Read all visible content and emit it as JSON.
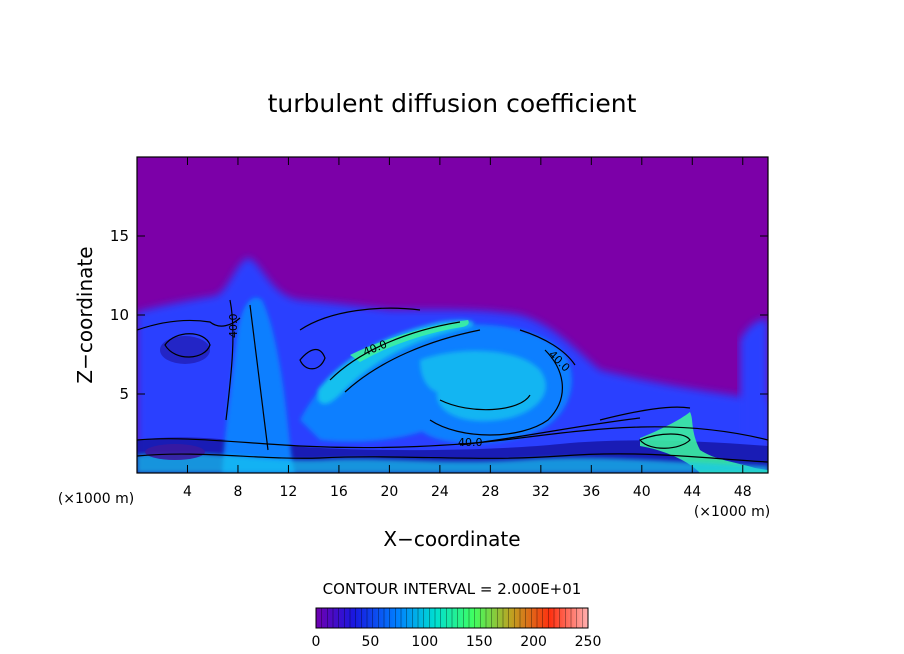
{
  "chart_data": {
    "type": "heatmap",
    "title": "turbulent diffusion coefficient",
    "xlabel": "X−coordinate",
    "ylabel": "Z−coordinate",
    "x_unit_left": "(×1000 m)",
    "x_unit_right": "(×1000 m)",
    "xlim": [
      0,
      50
    ],
    "ylim": [
      0,
      20
    ],
    "xticks": [
      4,
      8,
      12,
      16,
      20,
      24,
      28,
      32,
      36,
      40,
      44,
      48
    ],
    "yticks": [
      5,
      10,
      15
    ],
    "contour_interval_label": "CONTOUR INTERVAL = 2.000E+01",
    "contour_labels": [
      "40.0",
      "40.0",
      "40.0",
      "40.0"
    ],
    "colorbar": {
      "min": 0,
      "max": 250,
      "ticks": [
        0,
        50,
        100,
        150,
        200,
        250
      ],
      "colors": [
        "#7000b0",
        "#1818e0",
        "#0080ff",
        "#00e0d0",
        "#40ff60",
        "#c0a020",
        "#ff3010",
        "#ffb0b0"
      ]
    },
    "background_value_color": "#7c00a8",
    "field_colors": {
      "low_blue": "#2a40ff",
      "mid_blue": "#0d7fff",
      "cyan": "#12c8ee",
      "green": "#3cf0a0",
      "dark": "#0a0a60"
    }
  }
}
